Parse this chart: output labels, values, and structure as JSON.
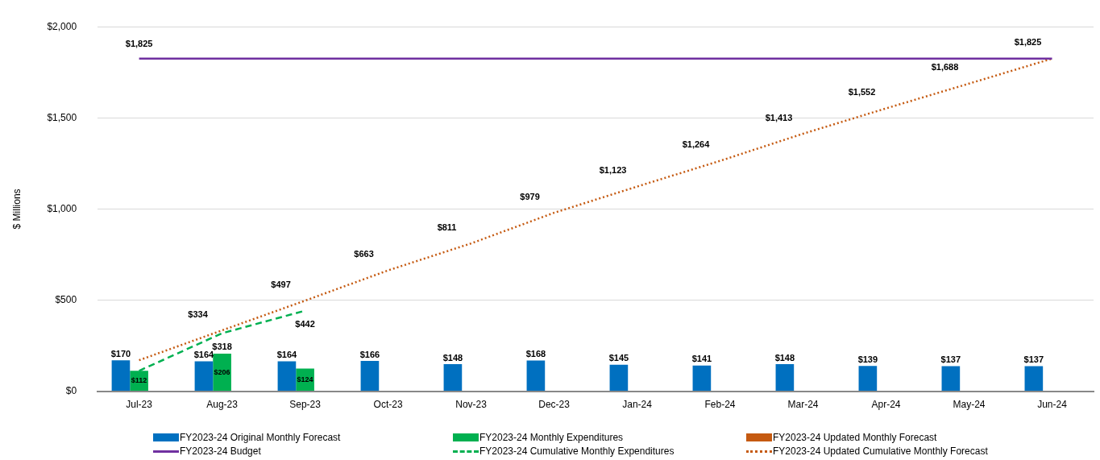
{
  "chart_data": {
    "type": "bar",
    "ylabel": "$ Millions",
    "categories": [
      "Jul-23",
      "Aug-23",
      "Sep-23",
      "Oct-23",
      "Nov-23",
      "Dec-23",
      "Jan-24",
      "Feb-24",
      "Mar-24",
      "Apr-24",
      "May-24",
      "Jun-24"
    ],
    "series": [
      {
        "name": "FY2023-24 Original Monthly Forecast",
        "color": "#0070c0",
        "values": [
          170,
          164,
          164,
          166,
          148,
          168,
          145,
          141,
          148,
          139,
          137,
          137
        ],
        "value_labels": [
          "$170",
          "$164",
          "$164",
          "$166",
          "$148",
          "$168",
          "$145",
          "$141",
          "$148",
          "$139",
          "$137",
          "$137"
        ]
      },
      {
        "name": "FY2023-24 Monthly Expenditures",
        "color": "#00b050",
        "values": [
          112,
          206,
          124,
          null,
          null,
          null,
          null,
          null,
          null,
          null,
          null,
          null
        ],
        "value_labels": [
          "$112",
          "$206",
          "$124",
          null,
          null,
          null,
          null,
          null,
          null,
          null,
          null,
          null
        ]
      },
      {
        "name": "FY2023-24 Updated Monthly Forecast",
        "color": "#c55a11",
        "values": [
          null,
          null,
          null,
          null,
          null,
          null,
          null,
          null,
          null,
          null,
          null,
          null
        ]
      },
      {
        "name": "FY2023-24 Budget",
        "type": "line",
        "color": "#7030a0",
        "line_style": "solid",
        "values": [
          1825,
          1825,
          1825,
          1825,
          1825,
          1825,
          1825,
          1825,
          1825,
          1825,
          1825,
          1825
        ],
        "value_labels": [
          "$1,825",
          null,
          null,
          null,
          null,
          null,
          null,
          null,
          null,
          null,
          null,
          null
        ]
      },
      {
        "name": "FY2023-24 Cumulative Monthly Expenditures",
        "type": "line",
        "color": "#00b050",
        "line_style": "dashed",
        "values": [
          112,
          318,
          442,
          null,
          null,
          null,
          null,
          null,
          null,
          null,
          null,
          null
        ],
        "value_labels": [
          null,
          "$318",
          "$442",
          null,
          null,
          null,
          null,
          null,
          null,
          null,
          null,
          null
        ]
      },
      {
        "name": "FY2023-24 Updated Cumulative Monthly Forecast",
        "type": "line",
        "color": "#c55a11",
        "line_style": "dotted",
        "values": [
          170,
          334,
          497,
          663,
          811,
          979,
          1123,
          1264,
          1413,
          1552,
          1688,
          1825
        ],
        "value_labels": [
          null,
          "$334",
          "$497",
          "$663",
          "$811",
          "$979",
          "$1,123",
          "$1,264",
          "$1,413",
          "$1,552",
          "$1,688",
          "$1,825"
        ]
      }
    ],
    "ylim": [
      0,
      2000
    ],
    "yticks": [
      {
        "value": 0,
        "label": "$0"
      },
      {
        "value": 500,
        "label": "$500"
      },
      {
        "value": 1000,
        "label": "$1,000"
      },
      {
        "value": 1500,
        "label": "$1,500"
      },
      {
        "value": 2000,
        "label": "$2,000"
      }
    ],
    "grid": "y",
    "legend": "bottom",
    "marker": "none"
  }
}
